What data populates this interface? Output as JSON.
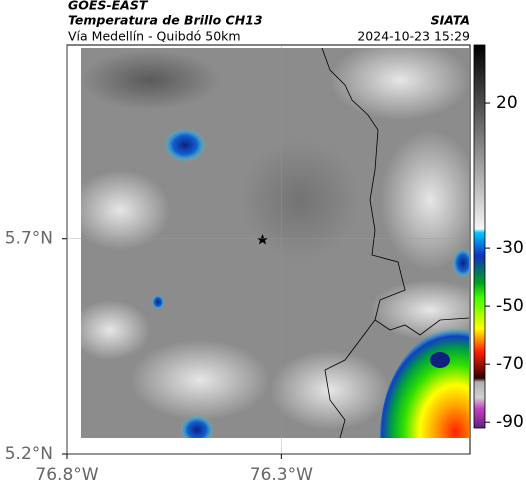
{
  "header": {
    "title": "GOES-EAST",
    "subtitle": "Temperatura de Brillo CH13",
    "location": "Vía Medellín - Quibdó 50km",
    "source": "SIATA",
    "timestamp": "2024-10-23 15:29"
  },
  "map": {
    "lat_range": [
      5.2,
      6.15
    ],
    "lon_range": [
      -76.8,
      -75.86
    ],
    "lat_ticks": [
      {
        "value": 5.7,
        "label": "5.7°N"
      },
      {
        "value": 5.2,
        "label": "5.2°N"
      }
    ],
    "lon_ticks": [
      {
        "value": -76.8,
        "label": "76.8°W"
      },
      {
        "value": -76.3,
        "label": "76.3°W"
      }
    ]
  },
  "colorbar": {
    "range": [
      -92,
      40
    ],
    "ticks": [
      20,
      -30,
      -50,
      -70,
      -90
    ]
  }
}
